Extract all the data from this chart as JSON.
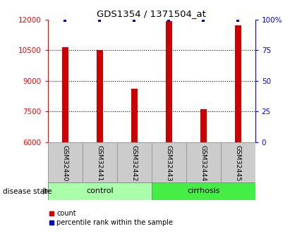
{
  "title": "GDS1354 / 1371504_at",
  "samples": [
    "GSM32440",
    "GSM32441",
    "GSM32442",
    "GSM32443",
    "GSM32444",
    "GSM32445"
  ],
  "count_values": [
    10650,
    10520,
    8620,
    11920,
    7620,
    11720
  ],
  "percentile_values": [
    99,
    99,
    99,
    99,
    99,
    99
  ],
  "ylim_left": [
    6000,
    12000
  ],
  "ylim_right": [
    0,
    100
  ],
  "yticks_left": [
    6000,
    7500,
    9000,
    10500,
    12000
  ],
  "yticks_right": [
    0,
    25,
    50,
    75,
    100
  ],
  "ytick_labels_left": [
    "6000",
    "7500",
    "9000",
    "10500",
    "12000"
  ],
  "ytick_labels_right": [
    "0",
    "25",
    "50",
    "75",
    "100%"
  ],
  "grid_lines": [
    7500,
    9000,
    10500
  ],
  "groups": [
    {
      "label": "control",
      "indices": [
        0,
        1,
        2
      ],
      "color": "#aaffaa"
    },
    {
      "label": "cirrhosis",
      "indices": [
        3,
        4,
        5
      ],
      "color": "#44ee44"
    }
  ],
  "bar_color": "#cc0000",
  "percentile_color": "#0000bb",
  "sample_box_color": "#cccccc",
  "bar_width": 0.18,
  "disease_state_label": "disease state",
  "legend_count_label": "count",
  "legend_percentile_label": "percentile rank within the sample"
}
